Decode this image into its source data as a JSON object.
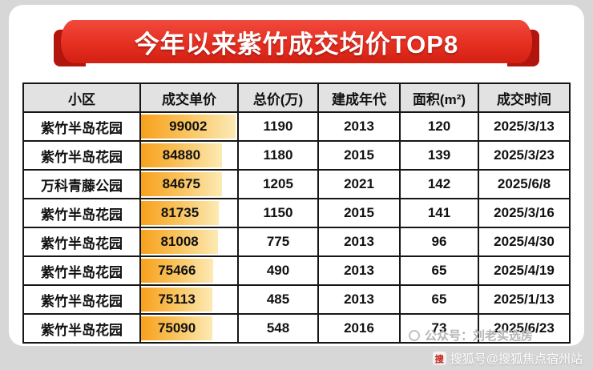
{
  "banner": {
    "title": "今年以来紫竹成交均价TOP8"
  },
  "chart_data": {
    "type": "table",
    "title": "今年以来紫竹成交均价TOP8",
    "columns": [
      "小区",
      "成交单价",
      "总价(万)",
      "建成年代",
      "面积(m²)",
      "成交时间"
    ],
    "rows": [
      {
        "community": "紫竹半岛花园",
        "unit_price": 99002,
        "total_price": 1190,
        "year_built": 2013,
        "area": 120,
        "deal_date": "2025/3/13"
      },
      {
        "community": "紫竹半岛花园",
        "unit_price": 84880,
        "total_price": 1180,
        "year_built": 2015,
        "area": 139,
        "deal_date": "2025/3/23"
      },
      {
        "community": "万科青藤公园",
        "unit_price": 84675,
        "total_price": 1205,
        "year_built": 2021,
        "area": 142,
        "deal_date": "2025/6/8"
      },
      {
        "community": "紫竹半岛花园",
        "unit_price": 81735,
        "total_price": 1150,
        "year_built": 2015,
        "area": 141,
        "deal_date": "2025/3/16"
      },
      {
        "community": "紫竹半岛花园",
        "unit_price": 81008,
        "total_price": 775,
        "year_built": 2013,
        "area": 96,
        "deal_date": "2025/4/30"
      },
      {
        "community": "紫竹半岛花园",
        "unit_price": 75466,
        "total_price": 490,
        "year_built": 2013,
        "area": 65,
        "deal_date": "2025/4/19"
      },
      {
        "community": "紫竹半岛花园",
        "unit_price": 75113,
        "total_price": 485,
        "year_built": 2013,
        "area": 65,
        "deal_date": "2025/1/13"
      },
      {
        "community": "紫竹半岛花园",
        "unit_price": 75090,
        "total_price": 548,
        "year_built": 2016,
        "area": 73,
        "deal_date": "2025/6/23"
      }
    ],
    "bar_column": "成交单价",
    "bar_style": "horizontal orange gradient bar, width proportional to unit price (max 99002)",
    "legend_position": "none",
    "grid": "full black cell borders"
  },
  "footer": {
    "account": "公众号：刘老实选房",
    "watermark": "搜狐号@搜狐焦点宿州站",
    "watermark_icon": "搜"
  },
  "colors": {
    "background": "#d7d7d7",
    "card_bg": "#ffffff",
    "banner_red": "#e52f21",
    "banner_fold_red": "#b1150e",
    "header_bg": "#e2e2e2",
    "table_border": "#161616",
    "bar_gradient_start": "#f7a11d",
    "bar_gradient_end": "#fceab4"
  }
}
